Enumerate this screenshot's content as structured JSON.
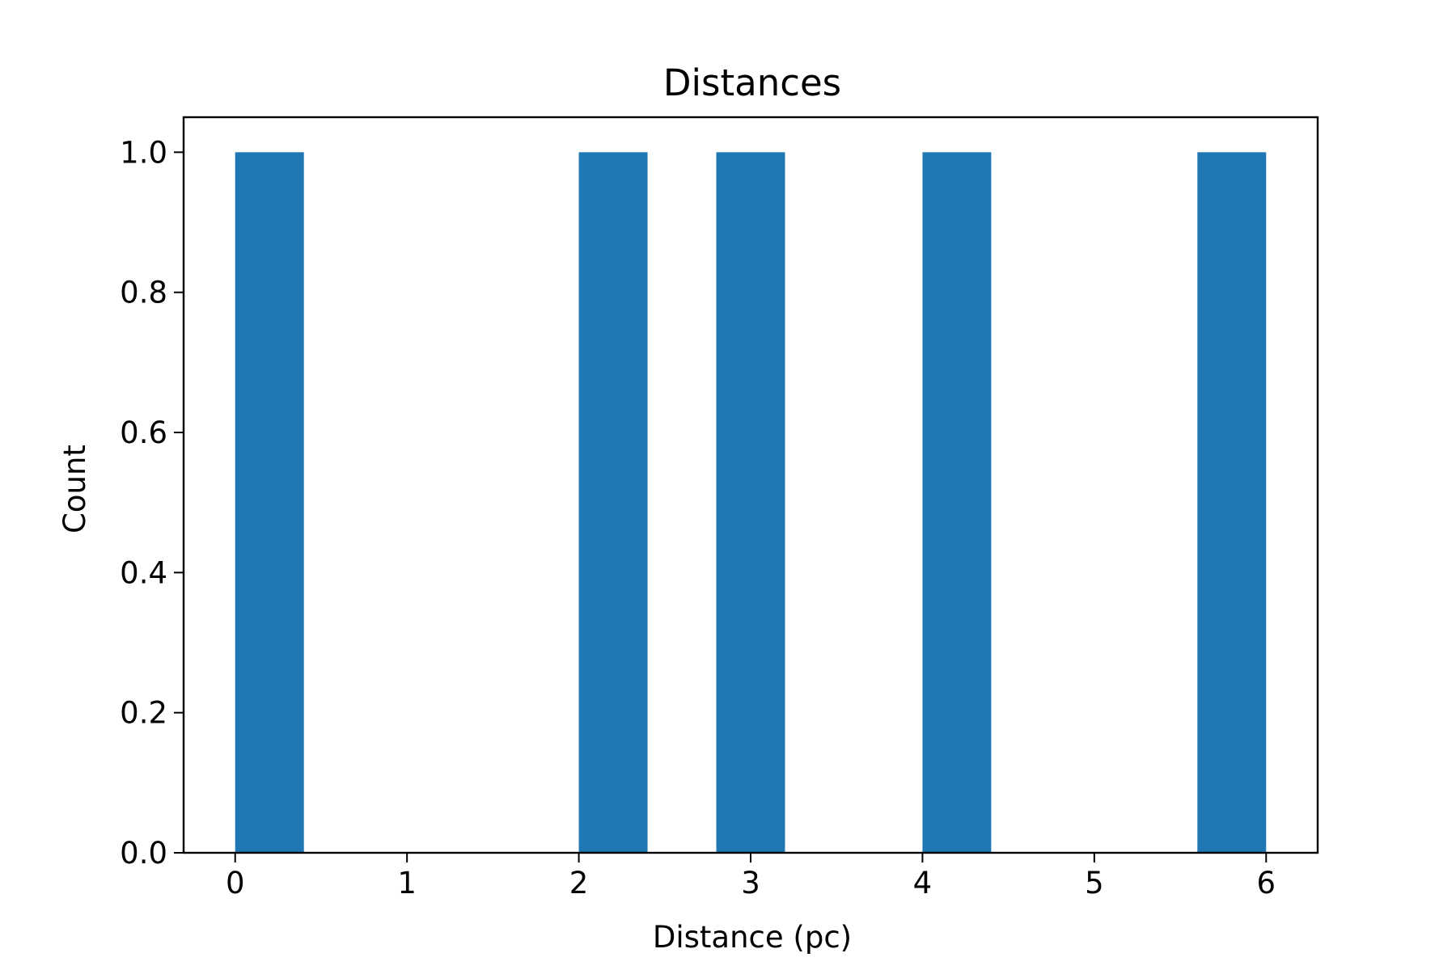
{
  "chart_data": {
    "type": "bar",
    "title": "Distances",
    "xlabel": "Distance (pc)",
    "ylabel": "Count",
    "bars": [
      {
        "x_start": 0.0,
        "x_end": 0.4,
        "value": 1.0
      },
      {
        "x_start": 2.0,
        "x_end": 2.4,
        "value": 1.0
      },
      {
        "x_start": 2.8,
        "x_end": 3.2,
        "value": 1.0
      },
      {
        "x_start": 4.0,
        "x_end": 4.4,
        "value": 1.0
      },
      {
        "x_start": 5.6,
        "x_end": 6.0,
        "value": 1.0
      }
    ],
    "xlim": [
      -0.3,
      6.3
    ],
    "ylim": [
      0,
      1.05
    ],
    "xticks": [
      0,
      1,
      2,
      3,
      4,
      5,
      6
    ],
    "xtick_labels": [
      "0",
      "1",
      "2",
      "3",
      "4",
      "5",
      "6"
    ],
    "yticks": [
      0.0,
      0.2,
      0.4,
      0.6,
      0.8,
      1.0
    ],
    "ytick_labels": [
      "0.0",
      "0.2",
      "0.4",
      "0.6",
      "0.8",
      "1.0"
    ],
    "grid": false,
    "colors": {
      "bar": "#1f77b4",
      "axis": "#000000"
    }
  }
}
